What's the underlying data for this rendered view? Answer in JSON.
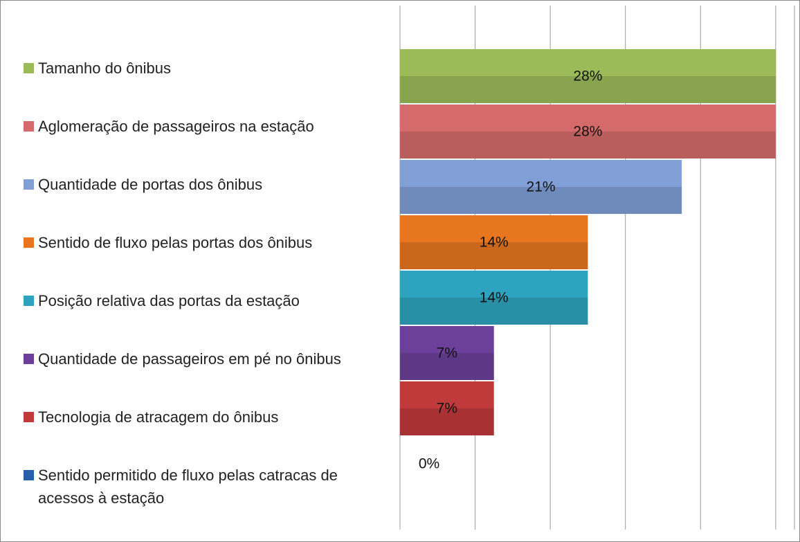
{
  "chart_data": {
    "type": "hbar",
    "categories": [
      "Tamanho do ônibus",
      "Aglomeração de passageiros na estação",
      "Quantidade de portas dos ônibus",
      "Sentido de fluxo pelas portas dos ônibus",
      "Posição relativa das portas da estação",
      "Quantidade de passageiros em pé no ônibus",
      "Tecnologia de atracagem do ônibus",
      "Sentido permitido de fluxo pelas catracas de acessos à estação"
    ],
    "values": [
      28,
      28,
      21,
      14,
      14,
      7,
      7,
      0
    ],
    "value_labels": [
      "28%",
      "28%",
      "21%",
      "14%",
      "14%",
      "7%",
      "7%",
      "0%"
    ],
    "colors": [
      "#9bbb59",
      "#d46a6a",
      "#7f9fd6",
      "#e8761e",
      "#2ea3bf",
      "#6b3f9a",
      "#c0393b",
      "#2660ad"
    ],
    "xlim": [
      0,
      29.4
    ],
    "xticks": [
      0,
      5.6,
      11.2,
      16.8,
      22.4,
      28
    ],
    "grid": true
  }
}
